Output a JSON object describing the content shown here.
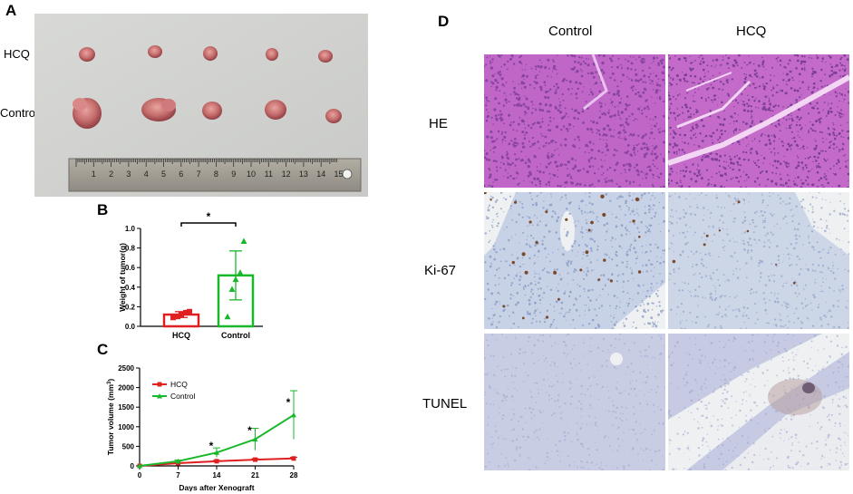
{
  "panels": {
    "a": {
      "letter": "A",
      "row_labels": [
        "HCQ",
        "Control"
      ],
      "ruler_ticks": [
        "1",
        "2",
        "3",
        "4",
        "5",
        "6",
        "7",
        "8",
        "9",
        "10",
        "11",
        "12",
        "13",
        "14",
        "15"
      ]
    },
    "b": {
      "letter": "B",
      "significance": "*",
      "colors": {
        "HCQ": "#e02020",
        "Control": "#19b82a"
      }
    },
    "c": {
      "letter": "C",
      "significance": "*",
      "colors": {
        "HCQ": "#e02020",
        "Control": "#19b82a"
      }
    },
    "d": {
      "letter": "D",
      "col_labels": [
        "Control",
        "HCQ"
      ],
      "row_labels": [
        "HE",
        "Ki-67",
        "TUNEL"
      ]
    }
  },
  "chart_data": [
    {
      "type": "bar",
      "panel": "B",
      "categories": [
        "HCQ",
        "Control"
      ],
      "values": [
        0.12,
        0.52
      ],
      "error": [
        0.03,
        0.25
      ],
      "points": [
        [
          0.09,
          0.1,
          0.12,
          0.14,
          0.15
        ],
        [
          0.1,
          0.38,
          0.48,
          0.55,
          0.87
        ]
      ],
      "xlabel": "",
      "ylabel": "Weight of tumor(g)",
      "ylim": [
        0,
        1.0
      ],
      "yticks": [
        "0.0",
        "0.2",
        "0.4",
        "0.6",
        "0.8",
        "1.0"
      ],
      "annotation": "*"
    },
    {
      "type": "line",
      "panel": "C",
      "x": [
        0,
        7,
        14,
        21,
        28
      ],
      "xticks": [
        "0",
        "7",
        "14",
        "21",
        "28"
      ],
      "series": [
        {
          "name": "HCQ",
          "values": [
            0,
            70,
            120,
            160,
            190
          ],
          "error": [
            0,
            15,
            20,
            25,
            30
          ]
        },
        {
          "name": "Control",
          "values": [
            0,
            120,
            340,
            680,
            1300
          ],
          "error": [
            0,
            30,
            120,
            280,
            620
          ]
        }
      ],
      "xlabel": "Days after Xenograft",
      "ylabel_main": "Tumor volume (mm",
      "ylabel_sup": "3",
      "ylabel_end": ")",
      "ylim": [
        0,
        2500
      ],
      "yticks": [
        "0",
        "500",
        "1000",
        "1500",
        "2000",
        "2500"
      ],
      "significant_days": [
        14,
        21,
        28
      ],
      "legend_position": "top-left",
      "annotation": "*"
    }
  ]
}
